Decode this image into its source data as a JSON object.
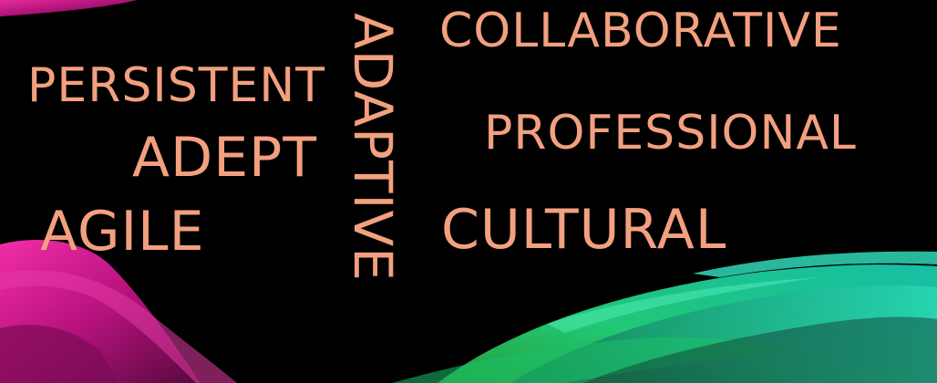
{
  "words": {
    "collaborative": "COLLABORATIVE",
    "persistent": "PERSISTENT",
    "professional": "PROFESSIONAL",
    "adept": "ADEPT",
    "adaptive": "ADAPTIVE",
    "agile": "AGILE",
    "cultural": "CULTURAL"
  },
  "colors": {
    "background": "#000000",
    "text": "#f2a07f",
    "ribbon_magenta": "#d0168f",
    "ribbon_green": "#1fd28a",
    "ribbon_teal": "#18b7a3"
  }
}
